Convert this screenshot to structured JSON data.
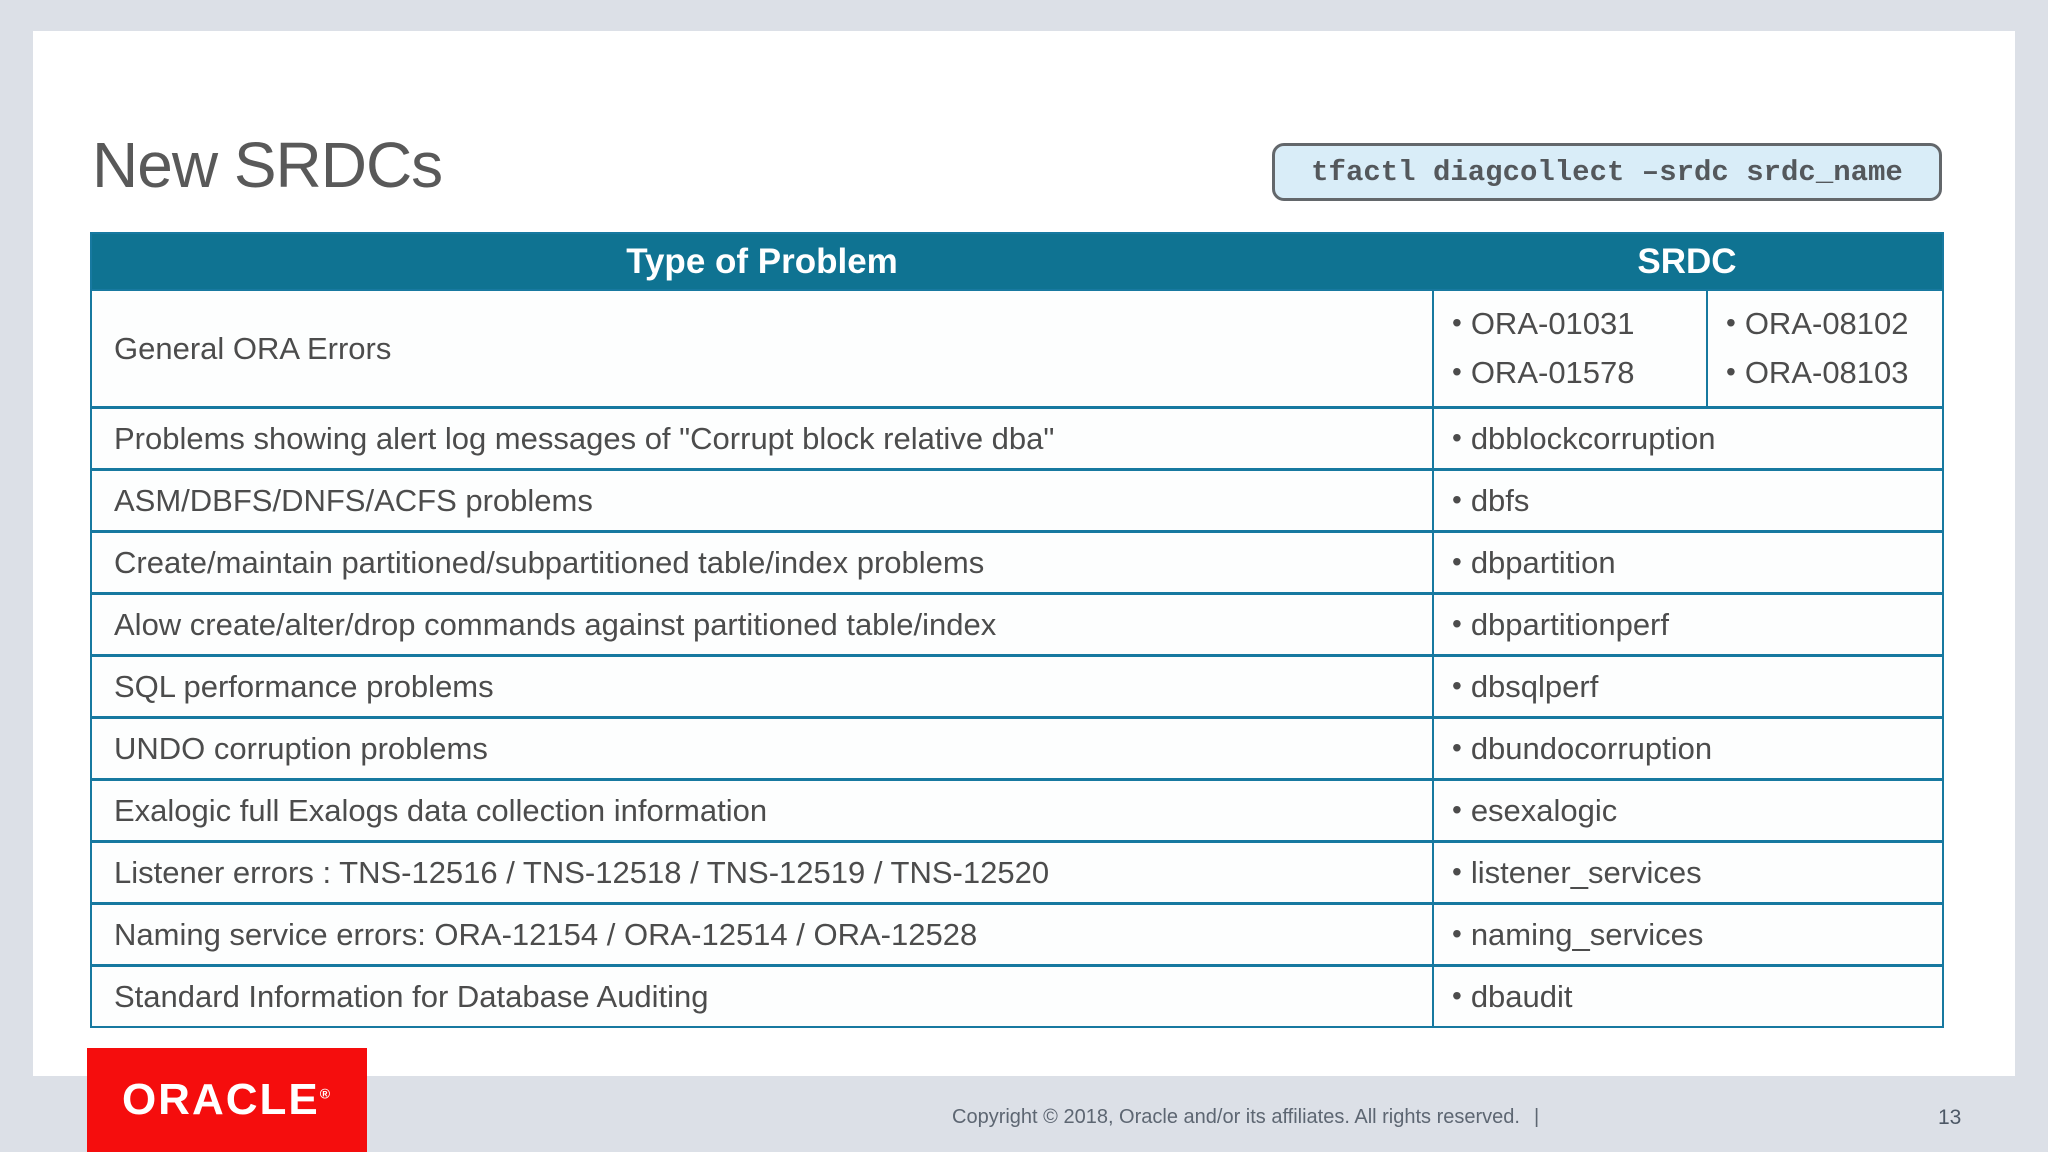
{
  "slide": {
    "title": "New SRDCs",
    "command": "tfactl diagcollect –srdc srdc_name",
    "page_number": "13",
    "footer": {
      "copyright": "Copyright © 2018, Oracle and/or its affiliates. All rights reserved.",
      "divider": "|",
      "logo_text": "ORACLE",
      "logo_registered": "®"
    },
    "colors": {
      "header_teal": "#0f7392",
      "table_border_teal": "#1779a0",
      "code_box_fill": "#d9edf8",
      "oracle_red": "#f50d0d",
      "background_gray": "#dce0e7",
      "text_gray": "#4c4c4c"
    }
  },
  "table": {
    "header": {
      "problem": "Type of Problem",
      "srdc": "SRDC"
    },
    "general_row": {
      "problem": "General ORA Errors",
      "col1": [
        "ORA-01031",
        "ORA-01578"
      ],
      "col2": [
        "ORA-08102",
        "ORA-08103"
      ]
    },
    "rows": [
      {
        "problem": "Problems showing alert log messages of \"Corrupt block relative dba\"",
        "srdc": "dbblockcorruption"
      },
      {
        "problem": "ASM/DBFS/DNFS/ACFS problems",
        "srdc": "dbfs"
      },
      {
        "problem": "Create/maintain partitioned/subpartitioned table/index problems",
        "srdc": "dbpartition"
      },
      {
        "problem": "Alow create/alter/drop commands against partitioned table/index",
        "srdc": "dbpartitionperf"
      },
      {
        "problem": "SQL performance problems",
        "srdc": "dbsqlperf"
      },
      {
        "problem": "UNDO corruption problems",
        "srdc": "dbundocorruption"
      },
      {
        "problem": "Exalogic full Exalogs data collection information",
        "srdc": "esexalogic"
      },
      {
        "problem": "Listener errors : TNS-12516 / TNS-12518 / TNS-12519 / TNS-12520",
        "srdc": "listener_services"
      },
      {
        "problem": "Naming service errors: ORA-12154 / ORA-12514 / ORA-12528",
        "srdc": "naming_services"
      },
      {
        "problem": "Standard Information for Database Auditing",
        "srdc": "dbaudit"
      }
    ]
  }
}
